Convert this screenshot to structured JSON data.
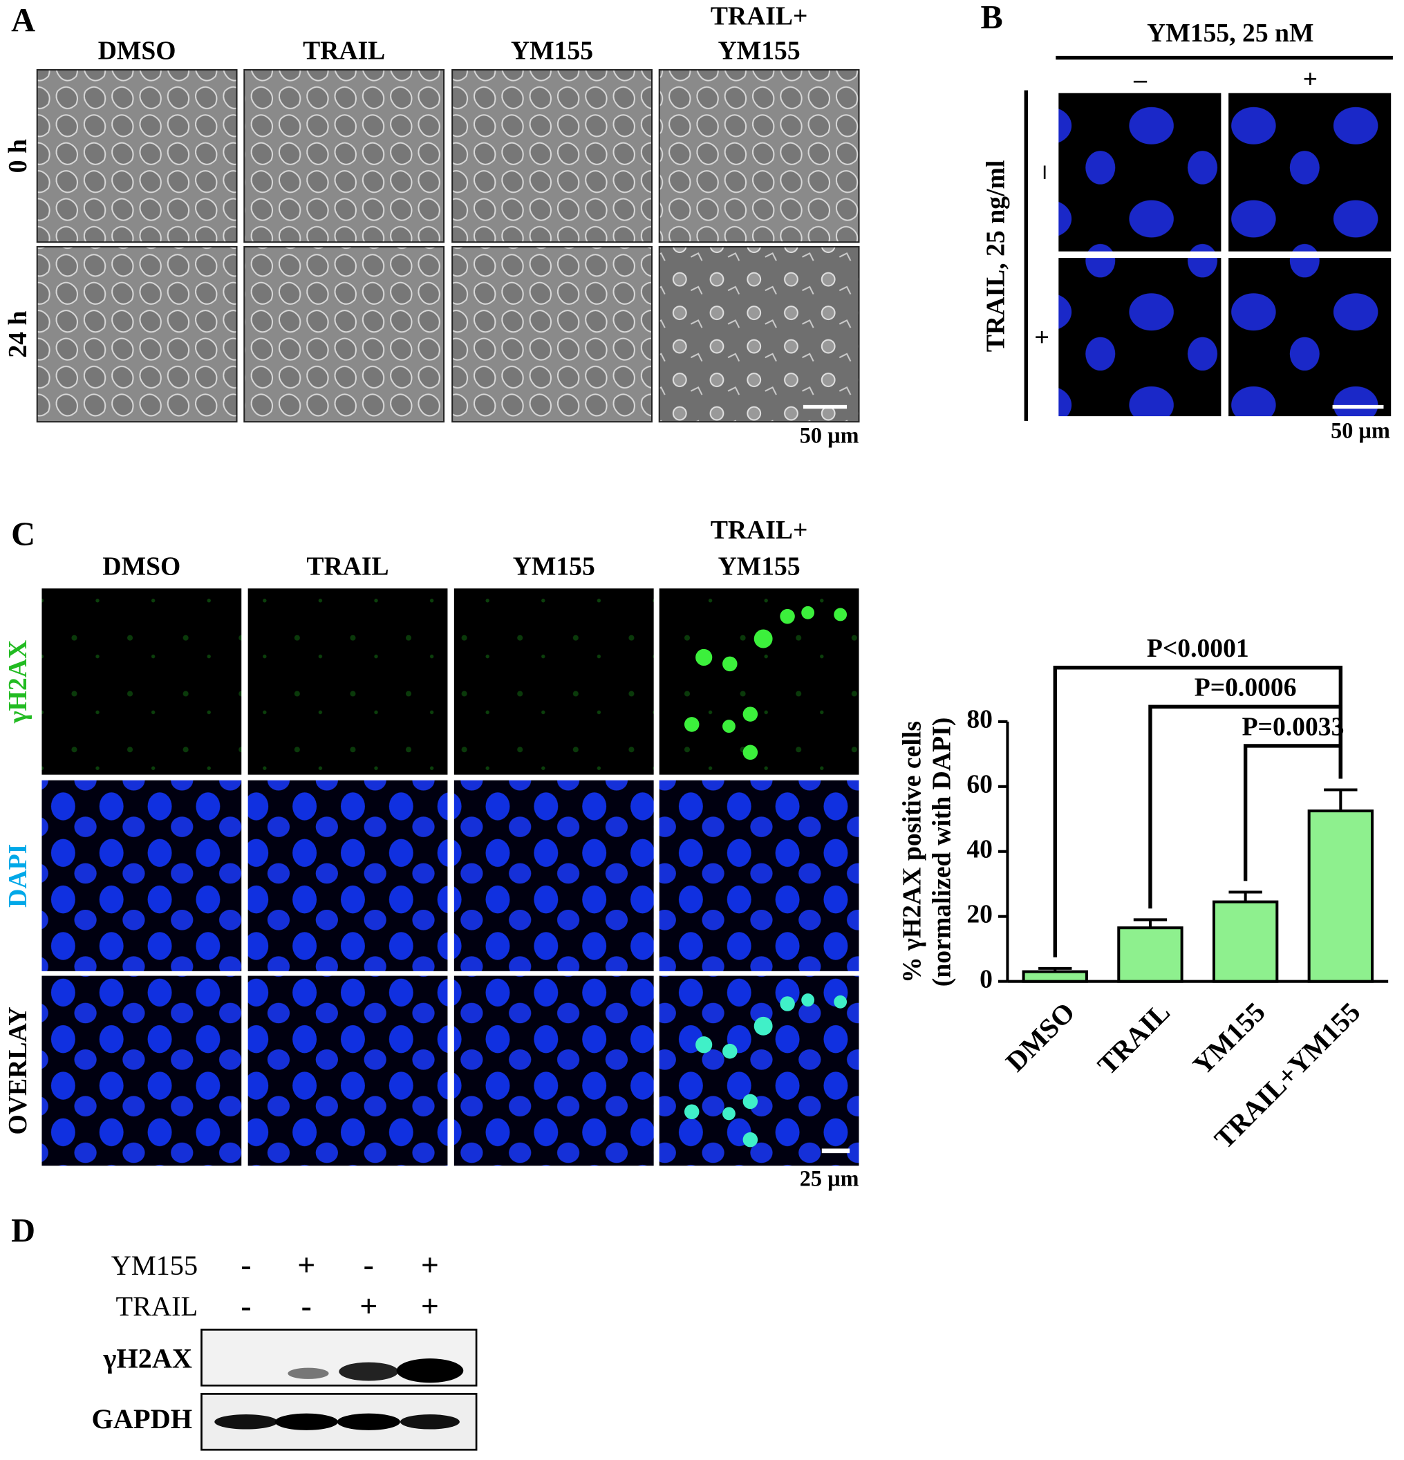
{
  "panel_a": {
    "label": "A",
    "columns": [
      [
        "DMSO"
      ],
      [
        "TRAIL"
      ],
      [
        "YM155"
      ],
      [
        "TRAIL+",
        "YM155"
      ]
    ],
    "rows": [
      "0 h",
      "24 h"
    ],
    "scale": "50 µm"
  },
  "panel_b": {
    "label": "B",
    "top": "YM155, 25 nM",
    "left": "TRAIL, 25 ng/ml",
    "columns": [
      "–",
      "+"
    ],
    "rows": [
      "–",
      "+"
    ],
    "scale": "50 µm"
  },
  "panel_c": {
    "label": "C",
    "columns": [
      [
        "DMSO"
      ],
      [
        "TRAIL"
      ],
      [
        "YM155"
      ],
      [
        "TRAIL+",
        "YM155"
      ]
    ],
    "rows": [
      "γH2AX",
      "DAPI",
      "OVERLAY"
    ],
    "scale": "25 µm"
  },
  "chart_data": {
    "type": "bar",
    "ylabel": [
      "% γH2AX positive cells",
      "(normalized with DAPI)"
    ],
    "categories": [
      "DMSO",
      "TRAIL",
      "YM155",
      "TRAIL+YM155"
    ],
    "values": [
      3,
      16.5,
      24.5,
      52.5
    ],
    "errors": [
      1,
      2.5,
      3,
      6.5
    ],
    "color": "#8ef08e",
    "ylim": [
      0,
      80
    ],
    "yticks": [
      0,
      20,
      40,
      60,
      80
    ],
    "comparisons": [
      {
        "from": 0,
        "to": 3,
        "label": "P<0.0001"
      },
      {
        "from": 1,
        "to": 3,
        "label": "P=0.0006"
      },
      {
        "from": 2,
        "to": 3,
        "label": "P=0.0033"
      }
    ]
  },
  "panel_d": {
    "label": "D",
    "conditions": [
      {
        "name": "YM155",
        "lanes": [
          "-",
          "+",
          "-",
          "+"
        ]
      },
      {
        "name": "TRAIL",
        "lanes": [
          "-",
          "-",
          "+",
          "+"
        ]
      }
    ],
    "blots": [
      "γH2AX",
      "GAPDH"
    ]
  }
}
